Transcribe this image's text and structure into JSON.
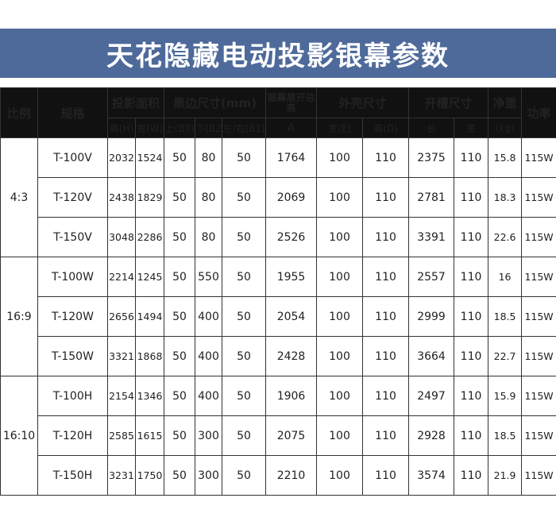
{
  "title": "天花隐藏电动投影银幕参数",
  "headers": {
    "ratio": "比例",
    "model": "规格",
    "projection_area": "投影面积",
    "black_border": "黑边尺寸(mm)",
    "screen_total_height": "银幕展开总高",
    "housing": "外壳尺寸",
    "slot": "开槽尺寸",
    "net_weight": "净重",
    "power": "功率",
    "sub": {
      "height_h": "高(H)",
      "width_w": "宽(W)",
      "top_b3": "上(B3)",
      "bottom_b2": "下(B2)",
      "side_b1": "左/右(B1)",
      "a": "A",
      "housing_width": "宽(E)",
      "housing_height": "高(D)",
      "slot_length": "长",
      "slot_width": "宽",
      "kg": "(kg)"
    }
  },
  "groups": [
    {
      "ratio": "4:3",
      "rows": [
        {
          "model": "T-100V",
          "h": "2032",
          "w": "1524",
          "b3": "50",
          "b2": "80",
          "b1": "50",
          "a": "1764",
          "e": "100",
          "d": "110",
          "len": "2375",
          "sw": "110",
          "kg": "15.8",
          "power": "115W"
        },
        {
          "model": "T-120V",
          "h": "2438",
          "w": "1829",
          "b3": "50",
          "b2": "80",
          "b1": "50",
          "a": "2069",
          "e": "100",
          "d": "110",
          "len": "2781",
          "sw": "110",
          "kg": "18.3",
          "power": "115W"
        },
        {
          "model": "T-150V",
          "h": "3048",
          "w": "2286",
          "b3": "50",
          "b2": "80",
          "b1": "50",
          "a": "2526",
          "e": "100",
          "d": "110",
          "len": "3391",
          "sw": "110",
          "kg": "22.6",
          "power": "115W"
        }
      ]
    },
    {
      "ratio": "16:9",
      "rows": [
        {
          "model": "T-100W",
          "h": "2214",
          "w": "1245",
          "b3": "50",
          "b2": "550",
          "b1": "50",
          "a": "1955",
          "e": "100",
          "d": "110",
          "len": "2557",
          "sw": "110",
          "kg": "16",
          "power": "115W"
        },
        {
          "model": "T-120W",
          "h": "2656",
          "w": "1494",
          "b3": "50",
          "b2": "400",
          "b1": "50",
          "a": "2054",
          "e": "100",
          "d": "110",
          "len": "2999",
          "sw": "110",
          "kg": "18.5",
          "power": "115W"
        },
        {
          "model": "T-150W",
          "h": "3321",
          "w": "1868",
          "b3": "50",
          "b2": "400",
          "b1": "50",
          "a": "2428",
          "e": "100",
          "d": "110",
          "len": "3664",
          "sw": "110",
          "kg": "22.7",
          "power": "115W"
        }
      ]
    },
    {
      "ratio": "16:10",
      "rows": [
        {
          "model": "T-100H",
          "h": "2154",
          "w": "1346",
          "b3": "50",
          "b2": "400",
          "b1": "50",
          "a": "1906",
          "e": "100",
          "d": "110",
          "len": "2497",
          "sw": "110",
          "kg": "15.9",
          "power": "115W"
        },
        {
          "model": "T-120H",
          "h": "2585",
          "w": "1615",
          "b3": "50",
          "b2": "300",
          "b1": "50",
          "a": "2075",
          "e": "100",
          "d": "110",
          "len": "2928",
          "sw": "110",
          "kg": "18.5",
          "power": "115W"
        },
        {
          "model": "T-150H",
          "h": "3231",
          "w": "1750",
          "b3": "50",
          "b2": "300",
          "b1": "50",
          "a": "2210",
          "e": "100",
          "d": "110",
          "len": "3574",
          "sw": "110",
          "kg": "21.9",
          "power": "115W"
        }
      ]
    }
  ],
  "colors": {
    "banner": "#4e6a9a",
    "header_bg": "#111111"
  }
}
